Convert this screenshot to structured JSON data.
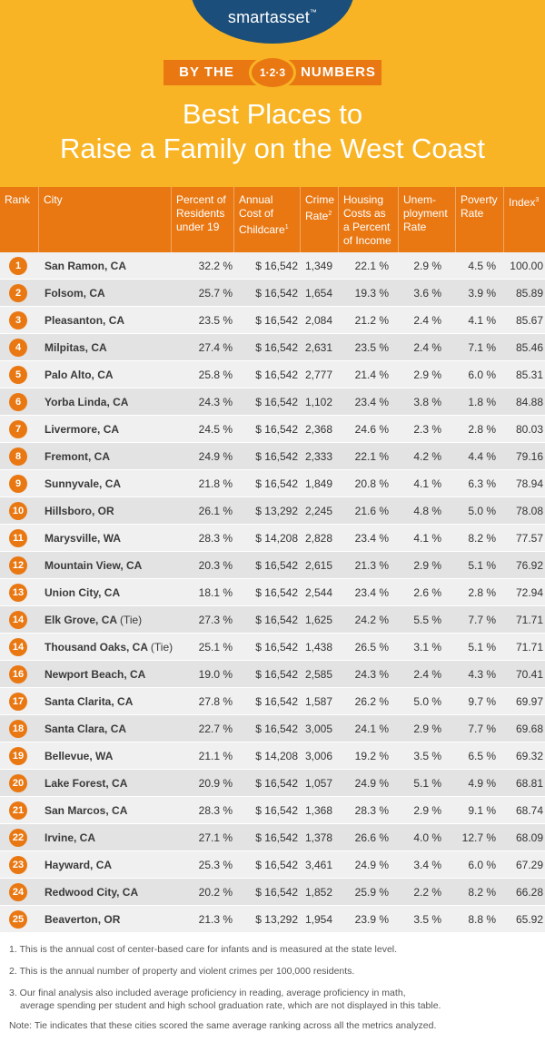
{
  "brand": {
    "name": "smartasset",
    "tm": "™"
  },
  "banner": {
    "left": "BY THE",
    "badge": "1·2·3",
    "right": "NUMBERS"
  },
  "title": {
    "line1": "Best Places to",
    "line2": "Raise a Family on the West Coast"
  },
  "headers": {
    "rank": "Rank",
    "city": "City",
    "pct": [
      "Percent of",
      "Residents",
      "under 19"
    ],
    "childcare": [
      "Annual",
      "Cost of",
      "Childcare"
    ],
    "childcare_sup": "1",
    "crime": [
      "Crime",
      "Rate"
    ],
    "crime_sup": "2",
    "housing": [
      "Housing",
      "Costs as",
      "a Percent",
      "of Income"
    ],
    "unemp": [
      "Unem-",
      "ployment",
      "Rate"
    ],
    "poverty": [
      "Poverty",
      "Rate"
    ],
    "index": "Index",
    "index_sup": "3"
  },
  "rows": [
    {
      "rank": "1",
      "city": "San Ramon, CA",
      "tie": "",
      "pct": "32.2 %",
      "childcare": "$ 16,542",
      "crime": "1,349",
      "housing": "22.1 %",
      "unemp": "2.9 %",
      "poverty": "4.5 %",
      "index": "100.00"
    },
    {
      "rank": "2",
      "city": "Folsom, CA",
      "tie": "",
      "pct": "25.7 %",
      "childcare": "$ 16,542",
      "crime": "1,654",
      "housing": "19.3 %",
      "unemp": "3.6 %",
      "poverty": "3.9 %",
      "index": "85.89"
    },
    {
      "rank": "3",
      "city": "Pleasanton, CA",
      "tie": "",
      "pct": "23.5 %",
      "childcare": "$ 16,542",
      "crime": "2,084",
      "housing": "21.2 %",
      "unemp": "2.4 %",
      "poverty": "4.1 %",
      "index": "85.67"
    },
    {
      "rank": "4",
      "city": "Milpitas, CA",
      "tie": "",
      "pct": "27.4 %",
      "childcare": "$ 16,542",
      "crime": "2,631",
      "housing": "23.5 %",
      "unemp": "2.4 %",
      "poverty": "7.1 %",
      "index": "85.46"
    },
    {
      "rank": "5",
      "city": "Palo Alto, CA",
      "tie": "",
      "pct": "25.8 %",
      "childcare": "$ 16,542",
      "crime": "2,777",
      "housing": "21.4 %",
      "unemp": "2.9 %",
      "poverty": "6.0 %",
      "index": "85.31"
    },
    {
      "rank": "6",
      "city": "Yorba Linda, CA",
      "tie": "",
      "pct": "24.3 %",
      "childcare": "$ 16,542",
      "crime": "1,102",
      "housing": "23.4 %",
      "unemp": "3.8 %",
      "poverty": "1.8 %",
      "index": "84.88"
    },
    {
      "rank": "7",
      "city": "Livermore, CA",
      "tie": "",
      "pct": "24.5 %",
      "childcare": "$ 16,542",
      "crime": "2,368",
      "housing": "24.6 %",
      "unemp": "2.3 %",
      "poverty": "2.8 %",
      "index": "80.03"
    },
    {
      "rank": "8",
      "city": "Fremont, CA",
      "tie": "",
      "pct": "24.9 %",
      "childcare": "$ 16,542",
      "crime": "2,333",
      "housing": "22.1 %",
      "unemp": "4.2 %",
      "poverty": "4.4 %",
      "index": "79.16"
    },
    {
      "rank": "9",
      "city": "Sunnyvale, CA",
      "tie": "",
      "pct": "21.8 %",
      "childcare": "$ 16,542",
      "crime": "1,849",
      "housing": "20.8 %",
      "unemp": "4.1 %",
      "poverty": "6.3 %",
      "index": "78.94"
    },
    {
      "rank": "10",
      "city": "Hillsboro, OR",
      "tie": "",
      "pct": "26.1 %",
      "childcare": "$ 13,292",
      "crime": "2,245",
      "housing": "21.6 %",
      "unemp": "4.8 %",
      "poverty": "5.0 %",
      "index": "78.08"
    },
    {
      "rank": "11",
      "city": "Marysville, WA",
      "tie": "",
      "pct": "28.3 %",
      "childcare": "$ 14,208",
      "crime": "2,828",
      "housing": "23.4 %",
      "unemp": "4.1 %",
      "poverty": "8.2 %",
      "index": "77.57"
    },
    {
      "rank": "12",
      "city": "Mountain View, CA",
      "tie": "",
      "pct": "20.3 %",
      "childcare": "$ 16,542",
      "crime": "2,615",
      "housing": "21.3 %",
      "unemp": "2.9 %",
      "poverty": "5.1 %",
      "index": "76.92"
    },
    {
      "rank": "13",
      "city": "Union City, CA",
      "tie": "",
      "pct": "18.1 %",
      "childcare": "$ 16,542",
      "crime": "2,544",
      "housing": "23.4 %",
      "unemp": "2.6 %",
      "poverty": "2.8 %",
      "index": "72.94"
    },
    {
      "rank": "14",
      "city": "Elk Grove, CA",
      "tie": "(Tie)",
      "pct": "27.3 %",
      "childcare": "$ 16,542",
      "crime": "1,625",
      "housing": "24.2 %",
      "unemp": "5.5 %",
      "poverty": "7.7 %",
      "index": "71.71"
    },
    {
      "rank": "14",
      "city": "Thousand Oaks, CA",
      "tie": "(Tie)",
      "pct": "25.1 %",
      "childcare": "$ 16,542",
      "crime": "1,438",
      "housing": "26.5 %",
      "unemp": "3.1 %",
      "poverty": "5.1 %",
      "index": "71.71"
    },
    {
      "rank": "16",
      "city": "Newport Beach, CA",
      "tie": "",
      "pct": "19.0 %",
      "childcare": "$ 16,542",
      "crime": "2,585",
      "housing": "24.3 %",
      "unemp": "2.4 %",
      "poverty": "4.3 %",
      "index": "70.41"
    },
    {
      "rank": "17",
      "city": "Santa Clarita, CA",
      "tie": "",
      "pct": "27.8 %",
      "childcare": "$ 16,542",
      "crime": "1,587",
      "housing": "26.2 %",
      "unemp": "5.0 %",
      "poverty": "9.7 %",
      "index": "69.97"
    },
    {
      "rank": "18",
      "city": "Santa Clara, CA",
      "tie": "",
      "pct": "22.7 %",
      "childcare": "$ 16,542",
      "crime": "3,005",
      "housing": "24.1 %",
      "unemp": "2.9 %",
      "poverty": "7.7 %",
      "index": "69.68"
    },
    {
      "rank": "19",
      "city": "Bellevue, WA",
      "tie": "",
      "pct": "21.1 %",
      "childcare": "$ 14,208",
      "crime": "3,006",
      "housing": "19.2 %",
      "unemp": "3.5 %",
      "poverty": "6.5 %",
      "index": "69.32"
    },
    {
      "rank": "20",
      "city": "Lake Forest, CA",
      "tie": "",
      "pct": "20.9 %",
      "childcare": "$ 16,542",
      "crime": "1,057",
      "housing": "24.9 %",
      "unemp": "5.1 %",
      "poverty": "4.9 %",
      "index": "68.81"
    },
    {
      "rank": "21",
      "city": "San Marcos, CA",
      "tie": "",
      "pct": "28.3 %",
      "childcare": "$ 16,542",
      "crime": "1,368",
      "housing": "28.3 %",
      "unemp": "2.9 %",
      "poverty": "9.1 %",
      "index": "68.74"
    },
    {
      "rank": "22",
      "city": "Irvine, CA",
      "tie": "",
      "pct": "27.1 %",
      "childcare": "$ 16,542",
      "crime": "1,378",
      "housing": "26.6 %",
      "unemp": "4.0 %",
      "poverty": "12.7 %",
      "index": "68.09"
    },
    {
      "rank": "23",
      "city": "Hayward, CA",
      "tie": "",
      "pct": "25.3 %",
      "childcare": "$ 16,542",
      "crime": "3,461",
      "housing": "24.9 %",
      "unemp": "3.4 %",
      "poverty": "6.0 %",
      "index": "67.29"
    },
    {
      "rank": "24",
      "city": "Redwood City, CA",
      "tie": "",
      "pct": "20.2 %",
      "childcare": "$ 16,542",
      "crime": "1,852",
      "housing": "25.9 %",
      "unemp": "2.2 %",
      "poverty": "8.2 %",
      "index": "66.28"
    },
    {
      "rank": "25",
      "city": "Beaverton, OR",
      "tie": "",
      "pct": "21.3 %",
      "childcare": "$ 13,292",
      "crime": "1,954",
      "housing": "23.9 %",
      "unemp": "3.5 %",
      "poverty": "8.8 %",
      "index": "65.92"
    }
  ],
  "notes": {
    "n1": "1. This is the annual cost of center-based care for infants and is measured at the state level.",
    "n2": "2. This is the annual number of property and violent crimes per 100,000 residents.",
    "n3a": "3. Our final analysis also included average proficiency in reading, average proficiency in math,",
    "n3b": "average spending per student and high school graduation rate, which are not displayed in this table.",
    "tie": "Note: Tie indicates that these cities scored the same average ranking across all the metrics analyzed."
  },
  "colors": {
    "header_bg": "#f8b424",
    "accent": "#e97813",
    "brand_blue": "#1b4e7a",
    "row_light": "#f0f0f0",
    "row_dark": "#e3e3e3"
  }
}
